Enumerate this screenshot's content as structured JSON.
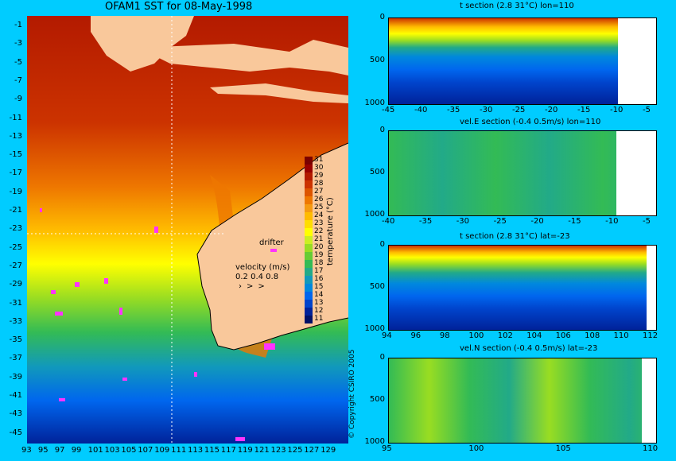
{
  "map": {
    "title": "OFAM1 SST for 08-May-1998",
    "lat_labels": [
      "-1",
      "-3",
      "-5",
      "-7",
      "-9",
      "-11",
      "-13",
      "-15",
      "-17",
      "-19",
      "-21",
      "-23",
      "-25",
      "-27",
      "-29",
      "-31",
      "-33",
      "-35",
      "-37",
      "-39",
      "-41",
      "-43",
      "-45"
    ],
    "lon_labels": [
      "93",
      "95",
      "97",
      "99",
      "101",
      "103",
      "105",
      "107",
      "109",
      "111",
      "113",
      "115",
      "117",
      "119",
      "121",
      "123",
      "125",
      "127",
      "129"
    ],
    "colorbar": {
      "label": "temperature (°C)",
      "values": [
        "31",
        "30",
        "29",
        "28",
        "27",
        "26",
        "25",
        "24",
        "23",
        "22",
        "21",
        "20",
        "19",
        "18",
        "17",
        "16",
        "15",
        "14",
        "13",
        "12",
        "11"
      ],
      "colors": [
        "#7a0000",
        "#990000",
        "#b31a00",
        "#cc3300",
        "#dd5500",
        "#ee7700",
        "#f59a10",
        "#ffbb00",
        "#ffdd00",
        "#ffff00",
        "#ccee22",
        "#99dd22",
        "#66cc33",
        "#33bb55",
        "#22aa88",
        "#1199bb",
        "#0088dd",
        "#0066ee",
        "#0044cc",
        "#002299",
        "#001166"
      ]
    },
    "legend": {
      "drifter": "drifter",
      "velocity": "velocity (m/s)",
      "scale": "0.2 0.4 0.8"
    },
    "copyright": "© Copyright CSIRO 2005",
    "colors": {
      "land": "#f9c89b",
      "drifter": "#ff33ff",
      "background": "#00ccff"
    }
  },
  "sections": [
    {
      "title": "t section (2.8     31°C) lon=110",
      "x_ticks": [
        "-45",
        "-40",
        "-35",
        "-30",
        "-25",
        "-20",
        "-15",
        "-10",
        "-5"
      ],
      "y_ticks": [
        "0",
        "500",
        "1000"
      ]
    },
    {
      "title": "vel.E section (-0.4     0.5m/s) lon=110",
      "x_ticks": [
        "-40",
        "-35",
        "-30",
        "-25",
        "-20",
        "-15",
        "-10",
        "-5"
      ],
      "y_ticks": [
        "0",
        "500",
        "1000"
      ]
    },
    {
      "title": "t section (2.8     31°C) lat=-23",
      "x_ticks": [
        "94",
        "96",
        "98",
        "100",
        "102",
        "104",
        "106",
        "108",
        "110",
        "112"
      ],
      "y_ticks": [
        "0",
        "500",
        "1000"
      ]
    },
    {
      "title": "vel.N section (-0.4     0.5m/s) lat=-23",
      "x_ticks": [
        "95",
        "100",
        "105",
        "110"
      ],
      "y_ticks": [
        "0",
        "500",
        "1000"
      ]
    }
  ]
}
